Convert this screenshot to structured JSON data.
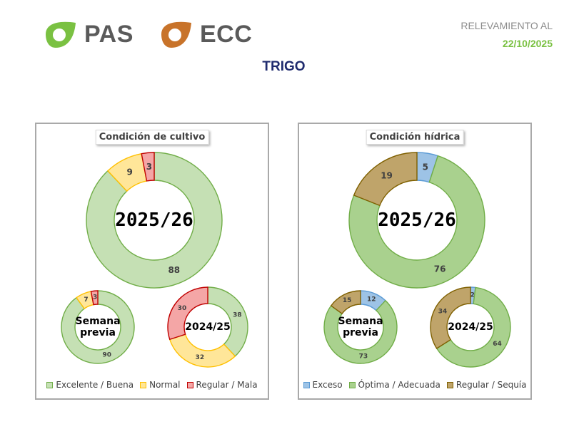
{
  "header": {
    "logo_pas": "PAS",
    "logo_ecc": "ECC",
    "relevamiento_label": "RELEVAMIENTO AL",
    "relevamiento_date": "22/10/2025",
    "crop": "TRIGO"
  },
  "colors": {
    "brand_green": "#7ac142",
    "brand_orange": "#c8732a",
    "title_navy": "#1f2b6e"
  },
  "chart_data": [
    {
      "type": "donut",
      "title": "Condición de cultivo",
      "categories": [
        "Excelente / Buena",
        "Normal",
        "Regular / Mala"
      ],
      "colors": {
        "fill": [
          "#c5e0b4",
          "#ffe699",
          "#f4a6a6"
        ],
        "stroke": [
          "#70ad47",
          "#ffc000",
          "#c00000"
        ]
      },
      "rings": [
        {
          "label": "2025/26",
          "values": [
            88,
            9,
            3
          ]
        },
        {
          "label": "Semana previa",
          "values": [
            90,
            7,
            3
          ]
        },
        {
          "label": "2024/25",
          "values": [
            38,
            32,
            30
          ]
        }
      ]
    },
    {
      "type": "donut",
      "title": "Condición hídrica",
      "categories": [
        "Exceso",
        "Óptima / Adecuada",
        "Regular / Sequía"
      ],
      "colors": {
        "fill": [
          "#9dc3e6",
          "#a9d18e",
          "#bfa46a"
        ],
        "stroke": [
          "#5b9bd5",
          "#70ad47",
          "#7f6000"
        ]
      },
      "rings": [
        {
          "label": "2025/26",
          "values": [
            5,
            76,
            19
          ]
        },
        {
          "label": "Semana previa",
          "values": [
            12,
            73,
            15
          ]
        },
        {
          "label": "2024/25",
          "values": [
            2,
            64,
            34
          ]
        }
      ]
    }
  ]
}
